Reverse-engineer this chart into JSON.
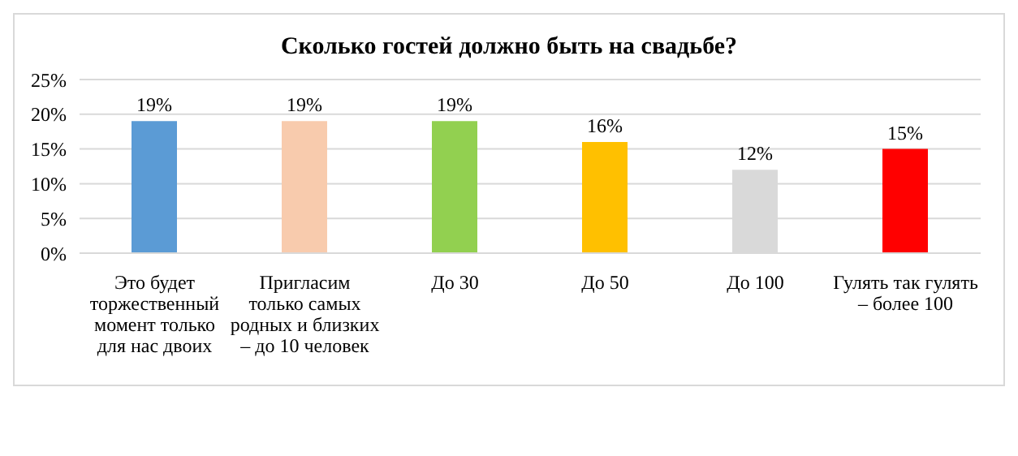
{
  "chart_data": {
    "type": "bar",
    "title": "Сколько гостей должно быть на свадьбе?",
    "categories": [
      "Это будет торжественный момент только для нас двоих",
      "Пригласим только самых родных и близких – до 10 человек",
      "До 30",
      "До 50",
      "До 100",
      "Гулять так гулять – более 100"
    ],
    "values": [
      19,
      19,
      19,
      16,
      12,
      15
    ],
    "colors": [
      "#5b9bd5",
      "#f8cbad",
      "#92d050",
      "#ffc000",
      "#d9d9d9",
      "#ff0000"
    ],
    "ylim": [
      0,
      25
    ],
    "yticks": [
      {
        "value": 0,
        "label": "0%"
      },
      {
        "value": 5,
        "label": "5%"
      },
      {
        "value": 10,
        "label": "10%"
      },
      {
        "value": 15,
        "label": "15%"
      },
      {
        "value": 20,
        "label": "20%"
      },
      {
        "value": 25,
        "label": "25%"
      }
    ],
    "value_labels": [
      "19%",
      "19%",
      "19%",
      "16%",
      "12%",
      "15%"
    ],
    "grid": "y"
  }
}
